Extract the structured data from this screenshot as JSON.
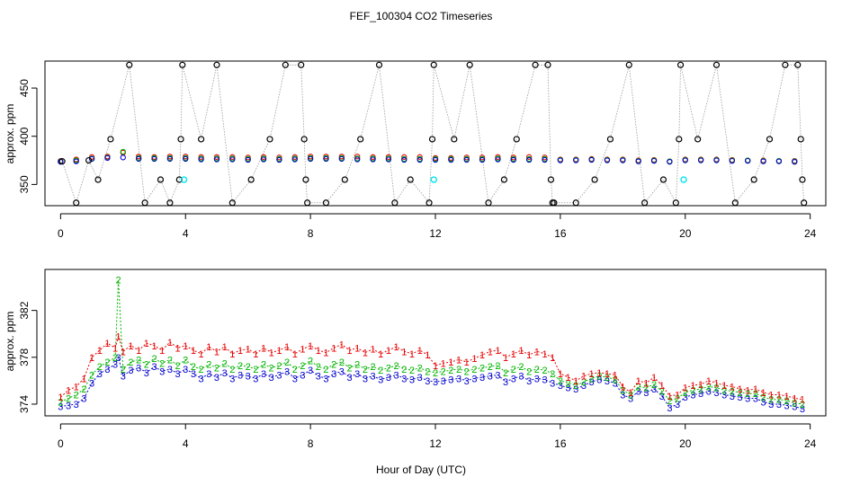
{
  "title": "FEF_100304  CO2 Timeseries",
  "xlabel": "Hour of Day (UTC)",
  "colors": {
    "axis": "#000000",
    "sensor1": "#e60000",
    "sensor2": "#00b400",
    "sensor3": "#0000cc",
    "flagged": "#00e5ee",
    "reference": "#000000",
    "connector": "#999999"
  },
  "chart_data": [
    {
      "type": "scatter",
      "panel": "top",
      "ylabel": "approx. ppm",
      "xlim": [
        -0.5,
        24.5
      ],
      "ylim": [
        328,
        478
      ],
      "xticks": [
        0,
        4,
        8,
        12,
        16,
        20,
        24
      ],
      "yticks": [
        350,
        400,
        450
      ],
      "reference_points": {
        "x": [
          0.05,
          0.5,
          0.9,
          1.2,
          1.6,
          2.2,
          2.7,
          3.2,
          3.5,
          3.8,
          3.85,
          3.9,
          4.5,
          5.0,
          5.5,
          6.1,
          6.7,
          7.2,
          7.7,
          7.8,
          7.85,
          7.9,
          8.5,
          9.1,
          9.6,
          10.2,
          10.7,
          11.2,
          11.8,
          11.9,
          11.95,
          12.6,
          13.1,
          13.7,
          14.2,
          14.6,
          15.2,
          15.6,
          15.7,
          15.75,
          15.8,
          16.5,
          17.1,
          17.6,
          18.2,
          18.7,
          19.3,
          19.7,
          19.8,
          19.85,
          20.4,
          21.0,
          21.6,
          22.2,
          22.7,
          23.2,
          23.6,
          23.7,
          23.75,
          23.8
        ],
        "y": [
          374,
          331,
          375,
          355,
          397,
          474,
          331,
          355,
          331,
          355,
          397,
          474,
          397,
          474,
          331,
          355,
          397,
          474,
          474,
          397,
          355,
          331,
          331,
          355,
          397,
          474,
          331,
          355,
          331,
          397,
          474,
          397,
          474,
          331,
          355,
          397,
          474,
          474,
          355,
          331,
          331,
          331,
          355,
          397,
          474,
          331,
          355,
          331,
          397,
          474,
          397,
          474,
          331,
          355,
          397,
          474,
          474,
          397,
          355,
          331
        ]
      },
      "flagged_points": {
        "x": [
          3.95,
          11.95,
          19.95
        ],
        "y": [
          355,
          355,
          355
        ]
      },
      "series": [
        {
          "name": "1",
          "shape": "circle",
          "x": [
            0.0,
            0.5,
            1.0,
            1.5,
            2.0,
            2.5,
            3.0,
            3.5,
            4.0,
            4.5,
            5.0,
            5.5,
            6.0,
            6.5,
            7.0,
            7.5,
            8.0,
            8.5,
            9.0,
            9.5,
            10.0,
            10.5,
            11.0,
            11.5,
            12.0,
            12.5,
            13.0,
            13.5,
            14.0,
            14.5,
            15.0,
            15.5,
            16.0,
            16.5,
            17.0,
            17.5,
            18.0,
            18.5,
            19.0,
            19.5,
            20.0,
            20.5,
            21.0,
            21.5,
            22.0,
            22.5,
            23.0,
            23.5
          ],
          "values": [
            374.5,
            376,
            378.5,
            379,
            383,
            379,
            378.5,
            379,
            379,
            378.5,
            378.5,
            378.5,
            378,
            378.5,
            378,
            378.5,
            379,
            379,
            379,
            379,
            378.5,
            378.5,
            378.5,
            378.5,
            377.5,
            377.5,
            378,
            378,
            378.5,
            378,
            378.5,
            378,
            376,
            376,
            376.5,
            376,
            376,
            375,
            375.5,
            374,
            376,
            376,
            376,
            375.5,
            375,
            375,
            374.5,
            374.5
          ]
        },
        {
          "name": "2",
          "shape": "circle",
          "x": [
            0.0,
            0.5,
            1.0,
            1.5,
            2.0,
            2.5,
            3.0,
            3.5,
            4.0,
            4.5,
            5.0,
            5.5,
            6.0,
            6.5,
            7.0,
            7.5,
            8.0,
            8.5,
            9.0,
            9.5,
            10.0,
            10.5,
            11.0,
            11.5,
            12.0,
            12.5,
            13.0,
            13.5,
            14.0,
            14.5,
            15.0,
            15.5,
            16.0,
            16.5,
            17.0,
            17.5,
            18.0,
            18.5,
            19.0,
            19.5,
            20.0,
            20.5,
            21.0,
            21.5,
            22.0,
            22.5,
            23.0,
            23.5
          ],
          "values": [
            374,
            375,
            377,
            378,
            384,
            377.5,
            377.5,
            377.5,
            377.5,
            377,
            377,
            377,
            376.5,
            377,
            376.5,
            377,
            377.5,
            377.5,
            377.5,
            377,
            377,
            377,
            376.5,
            376.5,
            376.5,
            376.5,
            376.5,
            376.5,
            377,
            376.5,
            376.5,
            376.5,
            375.5,
            375.5,
            376,
            375.5,
            375.5,
            374.5,
            375,
            374,
            375.5,
            375.5,
            375.5,
            375,
            375,
            374.5,
            374.5,
            374
          ]
        },
        {
          "name": "3",
          "shape": "circle",
          "x": [
            0.0,
            0.5,
            1.0,
            1.5,
            2.0,
            2.5,
            3.0,
            3.5,
            4.0,
            4.5,
            5.0,
            5.5,
            6.0,
            6.5,
            7.0,
            7.5,
            8.0,
            8.5,
            9.0,
            9.5,
            10.0,
            10.5,
            11.0,
            11.5,
            12.0,
            12.5,
            13.0,
            13.5,
            14.0,
            14.5,
            15.0,
            15.5,
            16.0,
            16.5,
            17.0,
            17.5,
            18.0,
            18.5,
            19.0,
            19.5,
            20.0,
            20.5,
            21.0,
            21.5,
            22.0,
            22.5,
            23.0,
            23.5
          ],
          "values": [
            373.5,
            374,
            376.5,
            377.5,
            378,
            376.5,
            376.5,
            376.5,
            376.5,
            376,
            376,
            376,
            375.5,
            376,
            375.5,
            376,
            376.5,
            376.5,
            376.5,
            376,
            376,
            376,
            375.5,
            375.5,
            375.5,
            375.5,
            375.5,
            375.5,
            376,
            375.5,
            375.5,
            375.5,
            375,
            375,
            375.5,
            375,
            375,
            374,
            374.5,
            373.5,
            375,
            375,
            375,
            374.5,
            374.5,
            374,
            374,
            373.5
          ]
        }
      ]
    },
    {
      "type": "line",
      "panel": "bottom",
      "ylabel": "approx. ppm",
      "xlim": [
        -0.5,
        24.5
      ],
      "ylim": [
        373,
        385.5
      ],
      "xticks": [
        0,
        4,
        8,
        12,
        16,
        20,
        24
      ],
      "yticks": [
        374,
        378,
        382
      ],
      "series": [
        {
          "name": "1",
          "x": [
            0.0,
            0.25,
            0.5,
            0.75,
            1.0,
            1.25,
            1.5,
            1.75,
            1.85,
            2.0,
            2.25,
            2.5,
            2.75,
            3.0,
            3.25,
            3.5,
            3.75,
            4.0,
            4.25,
            4.5,
            4.75,
            5.0,
            5.25,
            5.5,
            5.75,
            6.0,
            6.25,
            6.5,
            6.75,
            7.0,
            7.25,
            7.5,
            7.75,
            8.0,
            8.25,
            8.5,
            8.75,
            9.0,
            9.25,
            9.5,
            9.75,
            10.0,
            10.25,
            10.5,
            10.75,
            11.0,
            11.25,
            11.5,
            11.75,
            12.0,
            12.25,
            12.5,
            12.75,
            13.0,
            13.25,
            13.5,
            13.75,
            14.0,
            14.25,
            14.5,
            14.75,
            15.0,
            15.25,
            15.5,
            15.75,
            16.0,
            16.25,
            16.5,
            16.75,
            17.0,
            17.25,
            17.5,
            17.75,
            18.0,
            18.25,
            18.5,
            18.75,
            19.0,
            19.25,
            19.5,
            19.75,
            20.0,
            20.25,
            20.5,
            20.75,
            21.0,
            21.25,
            21.5,
            21.75,
            22.0,
            22.25,
            22.5,
            22.75,
            23.0,
            23.25,
            23.5,
            23.75
          ],
          "values": [
            374.6,
            375.2,
            375.5,
            376.2,
            378.0,
            378.6,
            379.2,
            378.8,
            379.8,
            378.5,
            379.0,
            378.6,
            379.2,
            379.0,
            378.6,
            379.3,
            378.8,
            379.0,
            378.6,
            378.3,
            378.9,
            378.5,
            378.9,
            378.3,
            378.6,
            378.7,
            378.3,
            378.8,
            378.4,
            378.6,
            378.9,
            378.3,
            378.7,
            379.0,
            378.6,
            378.4,
            378.8,
            379.1,
            378.6,
            378.8,
            378.4,
            378.7,
            378.3,
            378.6,
            378.9,
            378.5,
            378.3,
            378.6,
            378.2,
            377.3,
            377.5,
            377.6,
            377.8,
            377.6,
            377.9,
            378.2,
            378.5,
            378.6,
            378.0,
            378.3,
            378.6,
            378.2,
            378.5,
            378.3,
            378.0,
            376.6,
            376.3,
            376.0,
            376.4,
            376.6,
            376.7,
            376.6,
            376.5,
            375.5,
            375.0,
            376.0,
            375.8,
            376.3,
            375.6,
            374.7,
            374.8,
            375.4,
            375.6,
            375.7,
            376.0,
            375.8,
            375.6,
            375.5,
            375.3,
            375.2,
            375.3,
            375.0,
            374.8,
            374.8,
            374.7,
            374.5,
            374.4
          ]
        },
        {
          "name": "2",
          "x": [
            0.0,
            0.25,
            0.5,
            0.75,
            1.0,
            1.25,
            1.5,
            1.75,
            1.85,
            2.0,
            2.25,
            2.5,
            2.75,
            3.0,
            3.25,
            3.5,
            3.75,
            4.0,
            4.25,
            4.5,
            4.75,
            5.0,
            5.25,
            5.5,
            5.75,
            6.0,
            6.25,
            6.5,
            6.75,
            7.0,
            7.25,
            7.5,
            7.75,
            8.0,
            8.25,
            8.5,
            8.75,
            9.0,
            9.25,
            9.5,
            9.75,
            10.0,
            10.25,
            10.5,
            10.75,
            11.0,
            11.25,
            11.5,
            11.75,
            12.0,
            12.25,
            12.5,
            12.75,
            13.0,
            13.25,
            13.5,
            13.75,
            14.0,
            14.25,
            14.5,
            14.75,
            15.0,
            15.25,
            15.5,
            15.75,
            16.0,
            16.25,
            16.5,
            16.75,
            17.0,
            17.25,
            17.5,
            17.75,
            18.0,
            18.25,
            18.5,
            18.75,
            19.0,
            19.25,
            19.5,
            19.75,
            20.0,
            20.25,
            20.5,
            20.75,
            21.0,
            21.25,
            21.5,
            21.75,
            22.0,
            22.25,
            22.5,
            22.75,
            23.0,
            23.25,
            23.5,
            23.75
          ],
          "values": [
            374.2,
            374.5,
            374.8,
            375.3,
            376.5,
            377.2,
            377.6,
            378.0,
            384.6,
            377.0,
            377.6,
            377.8,
            377.4,
            377.9,
            377.5,
            377.8,
            377.3,
            377.8,
            377.2,
            377.0,
            377.4,
            377.1,
            377.5,
            377.0,
            377.3,
            377.2,
            377.0,
            377.4,
            377.1,
            377.3,
            377.6,
            377.0,
            377.3,
            377.7,
            377.2,
            377.0,
            377.4,
            377.6,
            377.1,
            377.4,
            377.0,
            377.2,
            376.9,
            377.1,
            377.3,
            377.0,
            376.9,
            377.1,
            376.8,
            376.7,
            376.8,
            376.9,
            377.0,
            376.8,
            377.0,
            377.1,
            377.2,
            377.3,
            376.7,
            377.0,
            377.2,
            376.8,
            377.0,
            376.9,
            376.6,
            376.0,
            375.8,
            375.6,
            375.9,
            376.2,
            376.4,
            376.3,
            376.1,
            375.2,
            374.8,
            375.5,
            375.4,
            375.7,
            375.1,
            374.3,
            374.5,
            375.0,
            375.2,
            375.3,
            375.5,
            375.4,
            375.2,
            375.1,
            375.0,
            374.9,
            374.9,
            374.6,
            374.4,
            374.4,
            374.3,
            374.1,
            374.0
          ]
        },
        {
          "name": "3",
          "x": [
            0.0,
            0.25,
            0.5,
            0.75,
            1.0,
            1.25,
            1.5,
            1.75,
            1.85,
            2.0,
            2.25,
            2.5,
            2.75,
            3.0,
            3.25,
            3.5,
            3.75,
            4.0,
            4.25,
            4.5,
            4.75,
            5.0,
            5.25,
            5.5,
            5.75,
            6.0,
            6.25,
            6.5,
            6.75,
            7.0,
            7.25,
            7.5,
            7.75,
            8.0,
            8.25,
            8.5,
            8.75,
            9.0,
            9.25,
            9.5,
            9.75,
            10.0,
            10.25,
            10.5,
            10.75,
            11.0,
            11.25,
            11.5,
            11.75,
            12.0,
            12.25,
            12.5,
            12.75,
            13.0,
            13.25,
            13.5,
            13.75,
            14.0,
            14.25,
            14.5,
            14.75,
            15.0,
            15.25,
            15.5,
            15.75,
            16.0,
            16.25,
            16.5,
            16.75,
            17.0,
            17.25,
            17.5,
            17.75,
            18.0,
            18.25,
            18.5,
            18.75,
            19.0,
            19.25,
            19.5,
            19.75,
            20.0,
            20.25,
            20.5,
            20.75,
            21.0,
            21.25,
            21.5,
            21.75,
            22.0,
            22.25,
            22.5,
            22.75,
            23.0,
            23.25,
            23.5,
            23.75
          ],
          "values": [
            373.8,
            373.9,
            374.0,
            374.5,
            375.8,
            376.6,
            377.0,
            377.4,
            378.0,
            376.4,
            376.9,
            377.1,
            376.7,
            377.2,
            376.8,
            377.0,
            376.6,
            377.0,
            376.6,
            376.2,
            376.6,
            376.3,
            376.7,
            376.2,
            376.5,
            376.4,
            376.2,
            376.6,
            376.3,
            376.5,
            376.8,
            376.2,
            376.5,
            376.9,
            376.4,
            376.2,
            376.6,
            376.8,
            376.3,
            376.6,
            376.2,
            376.4,
            376.1,
            376.3,
            376.5,
            376.2,
            376.1,
            376.3,
            376.0,
            375.9,
            376.0,
            376.1,
            376.2,
            376.0,
            376.2,
            376.3,
            376.4,
            376.5,
            375.9,
            376.2,
            376.4,
            376.0,
            376.2,
            376.1,
            375.8,
            375.6,
            375.4,
            375.3,
            375.6,
            375.9,
            376.1,
            376.0,
            375.8,
            374.8,
            374.5,
            375.1,
            375.0,
            375.3,
            374.7,
            373.7,
            374.0,
            374.6,
            374.8,
            374.9,
            375.1,
            375.0,
            374.8,
            374.7,
            374.6,
            374.5,
            374.5,
            374.2,
            374.0,
            374.0,
            373.9,
            373.8,
            373.6
          ]
        }
      ]
    }
  ]
}
